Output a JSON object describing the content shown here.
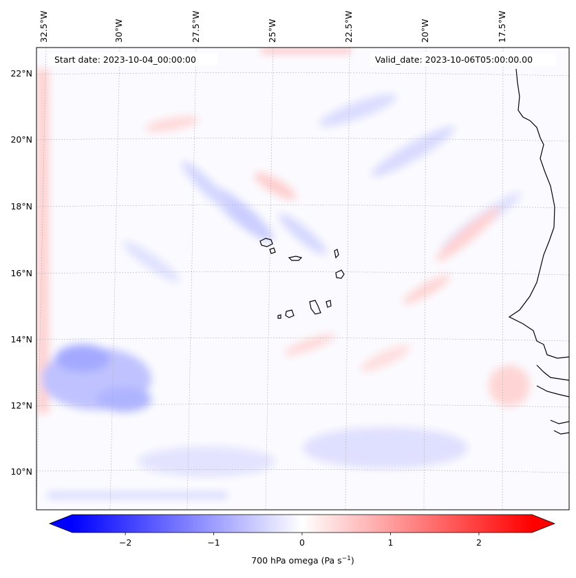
{
  "map": {
    "start_label": "Start date: 2023-10-04_00:00:00",
    "valid_label": "Valid_date: 2023-10-06T05:00:00.00",
    "lon_ticks": [
      "32.5°W",
      "30°W",
      "27.5°W",
      "25°W",
      "22.5°W",
      "20°W",
      "17.5°W"
    ],
    "lat_ticks": [
      "22°N",
      "20°N",
      "18°N",
      "16°N",
      "14°N",
      "12°N",
      "10°N"
    ],
    "colors": {
      "negative": "#0000ff",
      "zero": "#ffffff",
      "positive": "#ff0000",
      "coastline": "#000000",
      "gridline": "#b0b0b0"
    }
  },
  "colorbar": {
    "label": "700 hPa omega (Pa s",
    "label_sup": "−1",
    "label_close": ")",
    "ticks": [
      "−2",
      "−1",
      "0",
      "1",
      "2"
    ],
    "range": [
      -2.6,
      2.6
    ],
    "extend": "both"
  }
}
